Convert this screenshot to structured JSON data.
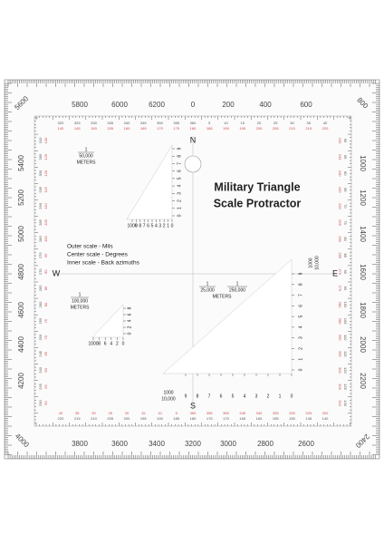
{
  "title": [
    "Military Triangle",
    "Scale Protractor"
  ],
  "cardinals": {
    "north": "N",
    "east": "E",
    "south": "S",
    "west": "W"
  },
  "legend": [
    "Outer scale - Mils",
    "Center scale - Degrees",
    "Inner scale - Back azimuths"
  ],
  "mils": {
    "corners": [
      "5600",
      "800",
      "2400",
      "4000"
    ],
    "top": [
      "5800",
      "6000",
      "6200",
      "0",
      "200",
      "400",
      "600"
    ],
    "right": [
      "1000",
      "1200",
      "1400",
      "1600",
      "1800",
      "2000",
      "2200"
    ],
    "bottom": [
      "3800",
      "3600",
      "3400",
      "3200",
      "3000",
      "2800",
      "2600"
    ],
    "left": [
      "5400",
      "5200",
      "5000",
      "4800",
      "4600",
      "4400",
      "4200"
    ]
  },
  "degrees": {
    "top": [
      "320",
      "325",
      "330",
      "335",
      "340",
      "345",
      "350",
      "355",
      "360",
      "5",
      "10",
      "15",
      "20",
      "25",
      "30",
      "35",
      "40"
    ],
    "top_back": [
      "140",
      "145",
      "150",
      "155",
      "160",
      "165",
      "170",
      "175",
      "180",
      "185",
      "190",
      "195",
      "200",
      "205",
      "210",
      "215",
      "220"
    ],
    "bottom": [
      "220",
      "215",
      "210",
      "205",
      "200",
      "195",
      "190",
      "185",
      "180",
      "175",
      "170",
      "165",
      "160",
      "155",
      "150",
      "145",
      "140"
    ],
    "bottom_back": [
      "40",
      "35",
      "30",
      "25",
      "20",
      "15",
      "10",
      "5",
      "360",
      "355",
      "350",
      "345",
      "340",
      "335",
      "330",
      "325",
      "320"
    ],
    "left": [
      "310",
      "305",
      "300",
      "295",
      "290",
      "285",
      "280",
      "275",
      "270",
      "265",
      "260",
      "255",
      "250",
      "245",
      "240",
      "235",
      "230"
    ],
    "left_back": [
      "130",
      "125",
      "120",
      "115",
      "110",
      "105",
      "100",
      "95",
      "90",
      "85",
      "80",
      "75",
      "70",
      "65",
      "60",
      "55",
      "50"
    ],
    "right": [
      "50",
      "55",
      "60",
      "65",
      "70",
      "75",
      "80",
      "85",
      "90",
      "95",
      "100",
      "105",
      "110",
      "115",
      "120",
      "125",
      "130"
    ],
    "right_back": [
      "230",
      "235",
      "240",
      "245",
      "250",
      "255",
      "260",
      "265",
      "270",
      "275",
      "280",
      "285",
      "290",
      "295",
      "300",
      "305",
      "310"
    ]
  },
  "scale_50k": {
    "numerator": "1",
    "denominator": "50,000",
    "unit": "METERS",
    "bottom": [
      "1000",
      "9",
      "8",
      "7",
      "6",
      "5",
      "4",
      "3",
      "2",
      "1",
      "0"
    ],
    "side": [
      "0",
      "1",
      "2",
      "3",
      "4",
      "5",
      "6",
      "7",
      "8",
      "9"
    ]
  },
  "scale_100k": {
    "numerator": "1",
    "denominator": "100,000",
    "unit": "METERS",
    "bottom": [
      "1000",
      "8",
      "6",
      "4",
      "2",
      "0"
    ],
    "side": [
      "0",
      "2",
      "4",
      "6",
      "8"
    ]
  },
  "scale_25k": {
    "numerator_a": "1",
    "denominator_a": "25,000",
    "numerator_b": "1",
    "denominator_b": "250,000",
    "unit": "METERS",
    "corner_top": "1000",
    "corner_bottom": "10,000",
    "bottom": [
      "9",
      "8",
      "7",
      "6",
      "5",
      "4",
      "3",
      "2",
      "1",
      "0"
    ],
    "side": [
      "0",
      "1",
      "2",
      "3",
      "4",
      "5",
      "6",
      "7",
      "8",
      "9"
    ]
  }
}
